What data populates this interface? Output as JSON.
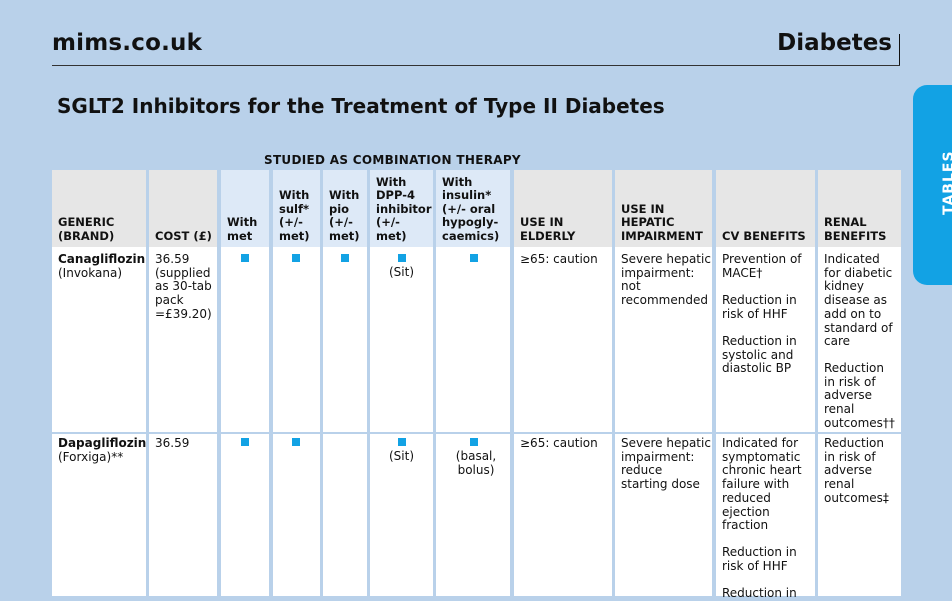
{
  "header": {
    "site": "mims.co.uk",
    "section": "Diabetes"
  },
  "side_tab": "TABLES",
  "title": "SGLT2 Inhibitors for the Treatment of Type II Diabetes",
  "group_heading": "STUDIED AS COMBINATION THERAPY",
  "columns": {
    "generic": "GENERIC (BRAND)",
    "cost": "COST (£)",
    "met": "With met",
    "sulf": "With sulf* (+/- met)",
    "pio": "With pio (+/- met)",
    "dpp4": "With DPP-4 inhibitor (+/- met)",
    "insulin": "With insulin* (+/- oral hypogly-caemics)",
    "elderly": "USE IN ELDERLY",
    "hepatic": "USE IN HEPATIC IMPAIRMENT",
    "cv": "CV BENEFITS",
    "renal": "RENAL BENEFITS"
  },
  "rows": [
    {
      "generic": "Canagliflozin",
      "brand": "(Invokana)",
      "cost": "36.59 (supplied as 30-tab pack =£39.20)",
      "met": true,
      "sulf": true,
      "pio": true,
      "dpp4": true,
      "insulin": true,
      "dpp4_note": "(Sit)",
      "insulin_note": "",
      "elderly": "≥65: caution",
      "hepatic": "Severe hepatic impairment: not recommended",
      "cv": [
        "Prevention of MACE†",
        "Reduction in risk of HHF",
        "Reduction in systolic and diastolic BP"
      ],
      "renal": [
        "Indicated for diabetic kidney disease as add on to standard of care",
        "Reduction in risk of adverse renal outcomes††"
      ]
    },
    {
      "generic": "Dapagliflozin",
      "brand": "(Forxiga)**",
      "cost": "36.59",
      "met": true,
      "sulf": true,
      "pio": false,
      "dpp4": true,
      "insulin": true,
      "dpp4_note": "(Sit)",
      "insulin_note": "(basal, bolus)",
      "elderly": "≥65: caution",
      "hepatic": "Severe hepatic impairment: reduce starting dose",
      "cv": [
        "Indicated for symptomatic chronic heart failure with reduced ejection fraction",
        "Reduction in risk of HHF",
        "Reduction in"
      ],
      "renal": [
        "Reduction in risk of adverse renal outcomes‡"
      ]
    }
  ]
}
